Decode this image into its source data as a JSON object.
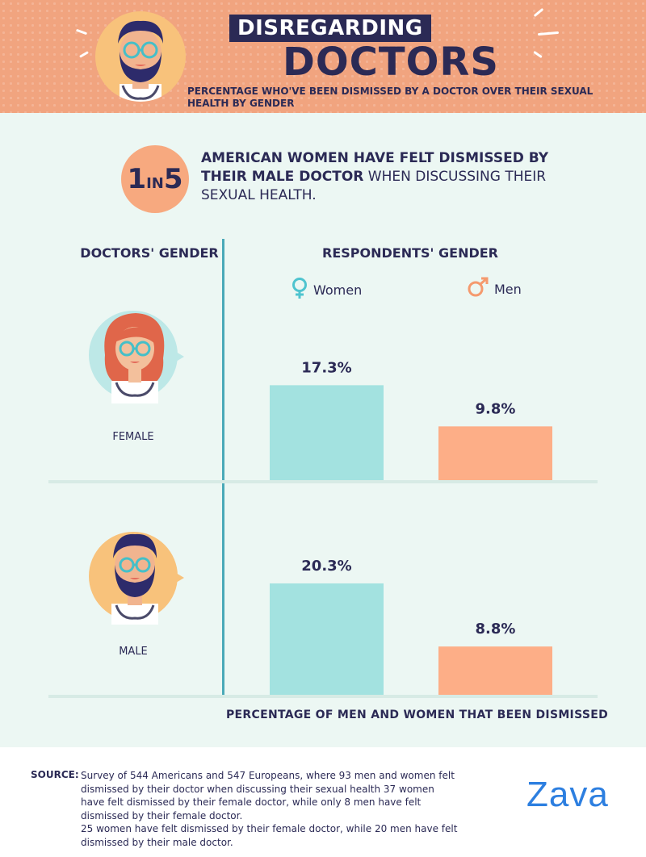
{
  "header": {
    "title_line1": "DISREGARDING",
    "title_line2": "DOCTORS",
    "subtitle": "PERCENTAGE WHO'VE BEEN DISMISSED BY A DOCTOR OVER THEIR SEXUAL HEALTH BY GENDER"
  },
  "stat": {
    "number_big1": "1",
    "word_in": "IN",
    "number_big2": "5",
    "text_bold": "AMERICAN WOMEN HAVE FELT DISMISSED BY THEIR MALE DOCTOR",
    "text_regular": " WHEN DISCUSSING THEIR SEXUAL HEALTH."
  },
  "chart_data": {
    "type": "bar",
    "left_header": "DOCTORS' GENDER",
    "right_header": "RESPONDENTS' GENDER",
    "legend": [
      "Women",
      "Men"
    ],
    "groups": [
      "FEMALE",
      "MALE"
    ],
    "series": [
      {
        "name": "Women",
        "values": [
          17.3,
          20.3
        ],
        "labels": [
          "17.3%",
          "20.3%"
        ]
      },
      {
        "name": "Men",
        "values": [
          9.8,
          8.8
        ],
        "labels": [
          "9.8%",
          "8.8%"
        ]
      }
    ],
    "colors": {
      "Women": "#a3e2e0",
      "Men": "#fdae87"
    },
    "xlabel": "PERCENTAGE OF MEN AND WOMEN THAT BEEN DISMISSED",
    "ylim": [
      0,
      30
    ]
  },
  "source": {
    "label": "SOURCE:",
    "paragraph1": "Survey of 544 Americans and 547 Europeans, where 93 men and women felt dismissed by their doctor when discussing their sexual health 37 women have felt dismissed by their female doctor, while only 8 men have felt dismissed by their female doctor.",
    "paragraph2": "25 women have felt dismissed by their female doctor, while 20 men have felt dismissed by their male doctor."
  },
  "brand": {
    "logo_text": "Zava",
    "accent_color": "#2d7fe0",
    "header_color": "#f1a47f",
    "navy": "#2b2a55"
  }
}
